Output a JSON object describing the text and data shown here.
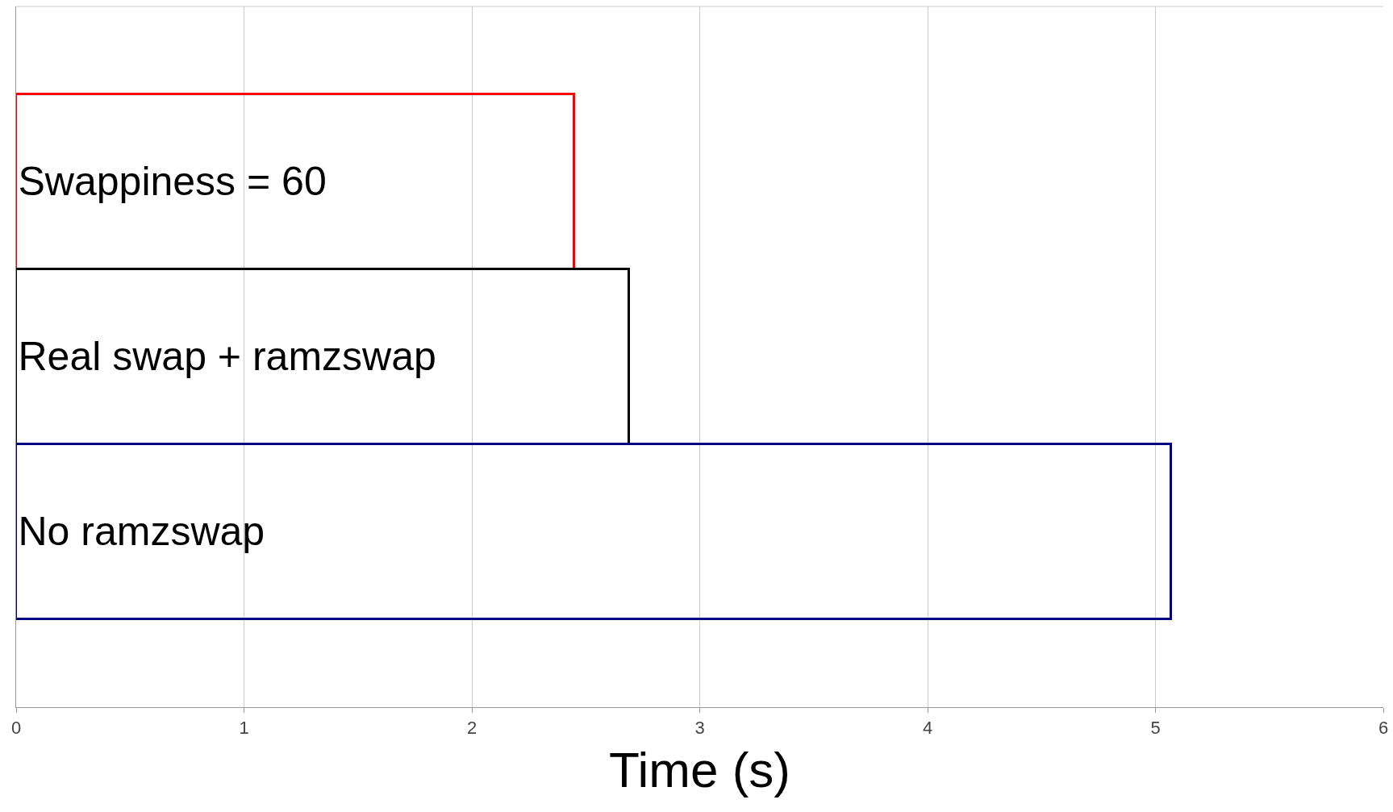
{
  "chart_data": {
    "type": "bar",
    "orientation": "horizontal",
    "xlabel": "Time (s)",
    "categories": [
      "Swappiness = 60",
      "Real swap + ramzswap",
      "No ramzswap"
    ],
    "values": [
      2.45,
      2.69,
      5.07
    ],
    "colors": [
      "#ff0000",
      "#000000",
      "#000080"
    ],
    "xlim": [
      0,
      6
    ],
    "xticks": [
      0,
      1,
      2,
      3,
      4,
      5,
      6
    ],
    "grid": "x",
    "tick_labels": "x",
    "legend": false
  }
}
